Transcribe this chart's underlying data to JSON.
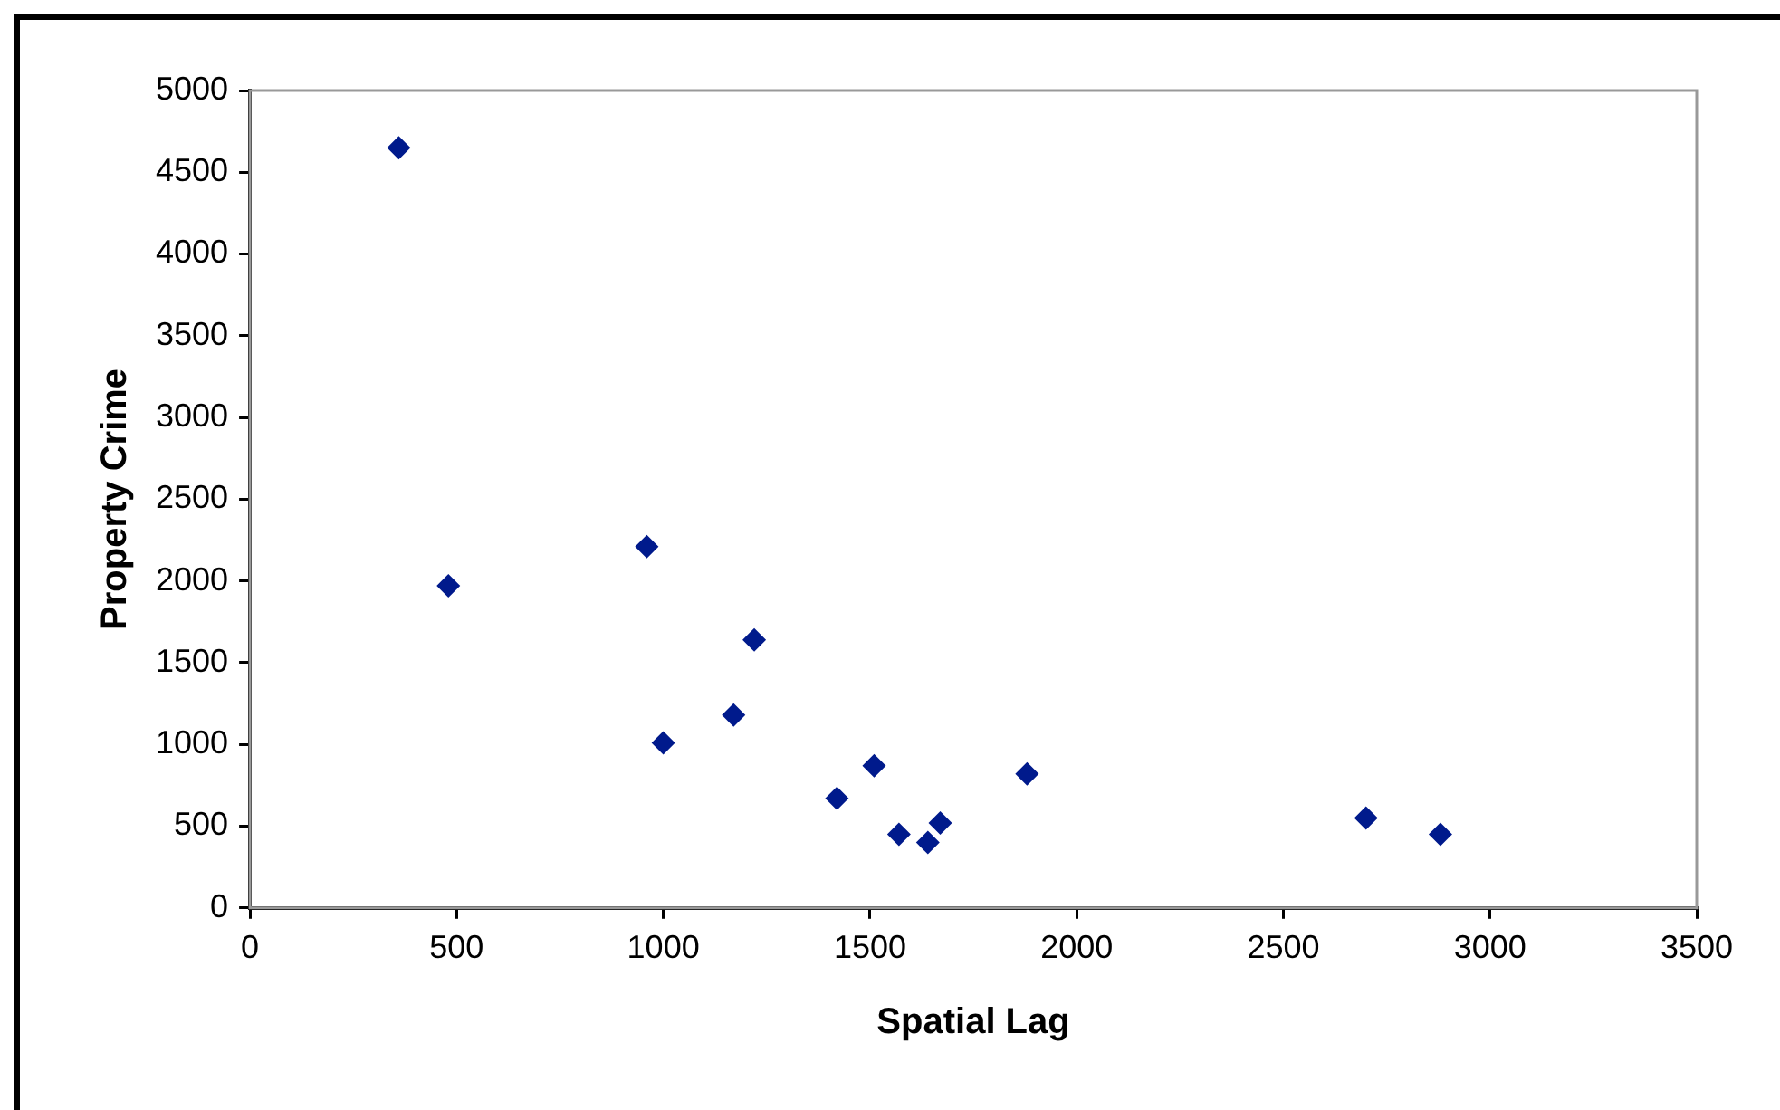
{
  "chart_data": {
    "type": "scatter",
    "xlabel": "Spatial Lag",
    "ylabel": "Property Crime",
    "x": [
      360,
      480,
      960,
      1220,
      1170,
      1000,
      1510,
      1420,
      1880,
      1670,
      1570,
      1640,
      2700,
      2880
    ],
    "series": [
      {
        "color": "#001a8c",
        "values": [
          4650,
          1970,
          2210,
          1640,
          1180,
          1010,
          870,
          670,
          820,
          520,
          450,
          400,
          550,
          450
        ]
      }
    ],
    "xlim": [
      0,
      3500
    ],
    "xticks": [
      0,
      500,
      1000,
      1500,
      2000,
      2500,
      3000,
      3500
    ],
    "ylim": [
      0,
      5000
    ],
    "yticks": [
      0,
      500,
      1000,
      1500,
      2000,
      2500,
      3000,
      3500,
      4000,
      4500,
      5000
    ],
    "grid": false,
    "legend": false,
    "marker": "diamond"
  }
}
